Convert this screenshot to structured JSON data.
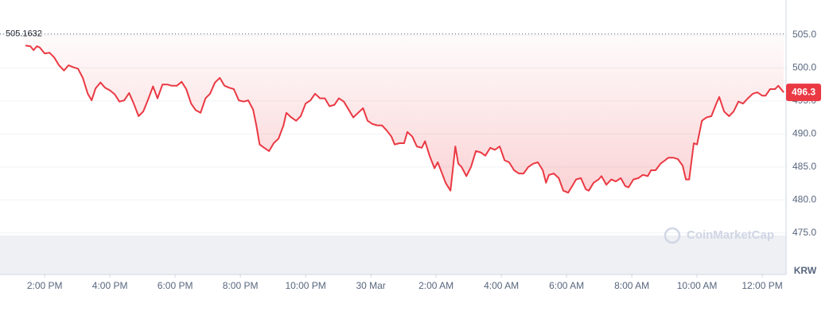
{
  "chart_data": {
    "type": "line",
    "color": "#ea3943",
    "y_unit": "KRW",
    "watermark": "CoinMarketCap",
    "reference_value": 505.1632,
    "xlim": [
      0.63,
      24.73
    ],
    "ylim": [
      468.7,
      510.3
    ],
    "xticks": [
      {
        "value": 2,
        "label": "2:00 PM"
      },
      {
        "value": 4,
        "label": "4:00 PM"
      },
      {
        "value": 6,
        "label": "6:00 PM"
      },
      {
        "value": 8,
        "label": "8:00 PM"
      },
      {
        "value": 10,
        "label": "10:00 PM"
      },
      {
        "value": 12,
        "label": "30 Mar"
      },
      {
        "value": 14,
        "label": "2:00 AM"
      },
      {
        "value": 16,
        "label": "4:00 AM"
      },
      {
        "value": 18,
        "label": "6:00 AM"
      },
      {
        "value": 20,
        "label": "8:00 AM"
      },
      {
        "value": 22,
        "label": "10:00 AM"
      },
      {
        "value": 24,
        "label": "12:00 PM"
      }
    ],
    "yticks": [
      {
        "value": 475,
        "label": "475.0"
      },
      {
        "value": 480,
        "label": "480.0"
      },
      {
        "value": 485,
        "label": "485.0"
      },
      {
        "value": 490,
        "label": "490.0"
      },
      {
        "value": 495,
        "label": "495.0"
      },
      {
        "value": 500,
        "label": "500.0"
      },
      {
        "value": 505,
        "label": "505.0"
      }
    ],
    "grid": true,
    "x": [
      1.41,
      1.56,
      1.66,
      1.76,
      1.85,
      2.0,
      2.15,
      2.29,
      2.44,
      2.59,
      2.73,
      2.88,
      3.02,
      3.17,
      3.32,
      3.44,
      3.56,
      3.71,
      3.85,
      4.0,
      4.15,
      4.29,
      4.44,
      4.59,
      4.73,
      4.88,
      5.02,
      5.17,
      5.32,
      5.46,
      5.61,
      5.76,
      5.9,
      6.05,
      6.2,
      6.34,
      6.49,
      6.63,
      6.78,
      6.93,
      7.07,
      7.22,
      7.37,
      7.51,
      7.66,
      7.8,
      7.95,
      8.1,
      8.24,
      8.39,
      8.49,
      8.59,
      8.73,
      8.88,
      9.02,
      9.17,
      9.32,
      9.41,
      9.56,
      9.71,
      9.85,
      10.0,
      10.15,
      10.29,
      10.44,
      10.59,
      10.73,
      10.88,
      11.02,
      11.17,
      11.32,
      11.46,
      11.61,
      11.76,
      11.9,
      12.05,
      12.2,
      12.34,
      12.49,
      12.63,
      12.73,
      12.88,
      13.02,
      13.12,
      13.27,
      13.41,
      13.56,
      13.66,
      13.8,
      13.95,
      14.05,
      14.2,
      14.29,
      14.44,
      14.59,
      14.68,
      14.78,
      14.93,
      15.07,
      15.22,
      15.37,
      15.51,
      15.66,
      15.8,
      15.95,
      16.1,
      16.24,
      16.39,
      16.54,
      16.68,
      16.83,
      16.98,
      17.12,
      17.27,
      17.37,
      17.46,
      17.61,
      17.76,
      17.9,
      18.05,
      18.15,
      18.29,
      18.44,
      18.59,
      18.68,
      18.83,
      18.98,
      19.07,
      19.22,
      19.37,
      19.51,
      19.66,
      19.8,
      19.9,
      20.05,
      20.2,
      20.34,
      20.49,
      20.59,
      20.73,
      20.88,
      21.02,
      21.12,
      21.27,
      21.41,
      21.56,
      21.66,
      21.76,
      21.9,
      22.0,
      22.15,
      22.29,
      22.44,
      22.59,
      22.68,
      22.83,
      22.98,
      23.12,
      23.27,
      23.41,
      23.56,
      23.71,
      23.85,
      24.0,
      24.1,
      24.24,
      24.39,
      24.49,
      24.66
    ],
    "values": [
      503.4,
      503.3,
      502.7,
      503.3,
      503.1,
      502.2,
      502.3,
      501.6,
      500.4,
      499.6,
      500.4,
      500.1,
      499.9,
      498.5,
      496.1,
      495.1,
      496.9,
      497.8,
      497.0,
      496.6,
      496.0,
      494.9,
      495.1,
      496.2,
      494.6,
      492.7,
      493.4,
      495.2,
      497.2,
      495.4,
      497.5,
      497.5,
      497.3,
      497.3,
      497.9,
      496.8,
      494.6,
      493.6,
      493.2,
      495.4,
      496.1,
      497.8,
      498.5,
      497.3,
      497.0,
      496.8,
      495.1,
      494.9,
      495.1,
      493.7,
      491.3,
      488.4,
      487.9,
      487.4,
      488.6,
      489.3,
      491.3,
      493.2,
      492.5,
      492.0,
      492.7,
      494.6,
      495.1,
      496.1,
      495.4,
      495.4,
      494.2,
      494.4,
      495.4,
      494.9,
      493.7,
      492.5,
      493.2,
      493.9,
      492.0,
      491.5,
      491.3,
      491.3,
      490.5,
      489.6,
      488.4,
      488.6,
      488.6,
      490.3,
      489.6,
      488.1,
      487.9,
      488.9,
      486.7,
      484.8,
      485.7,
      483.8,
      482.6,
      481.4,
      488.1,
      485.5,
      485.0,
      483.6,
      485.0,
      487.4,
      487.2,
      486.7,
      487.9,
      487.6,
      488.1,
      486.0,
      485.7,
      484.5,
      484.0,
      484.0,
      485.0,
      485.5,
      485.7,
      484.5,
      482.6,
      483.8,
      484.0,
      483.3,
      481.4,
      481.1,
      481.9,
      483.1,
      483.3,
      481.6,
      481.4,
      482.6,
      483.1,
      483.6,
      482.3,
      483.1,
      482.8,
      483.3,
      482.1,
      481.9,
      483.1,
      483.3,
      483.8,
      483.6,
      484.5,
      484.5,
      485.5,
      486.0,
      486.4,
      486.4,
      486.2,
      485.2,
      483.1,
      483.1,
      488.6,
      488.4,
      492.0,
      492.5,
      492.7,
      494.6,
      495.6,
      493.4,
      492.7,
      493.4,
      494.9,
      494.6,
      495.4,
      496.1,
      496.3,
      495.8,
      495.8,
      496.8,
      496.8,
      497.3,
      496.3
    ]
  }
}
